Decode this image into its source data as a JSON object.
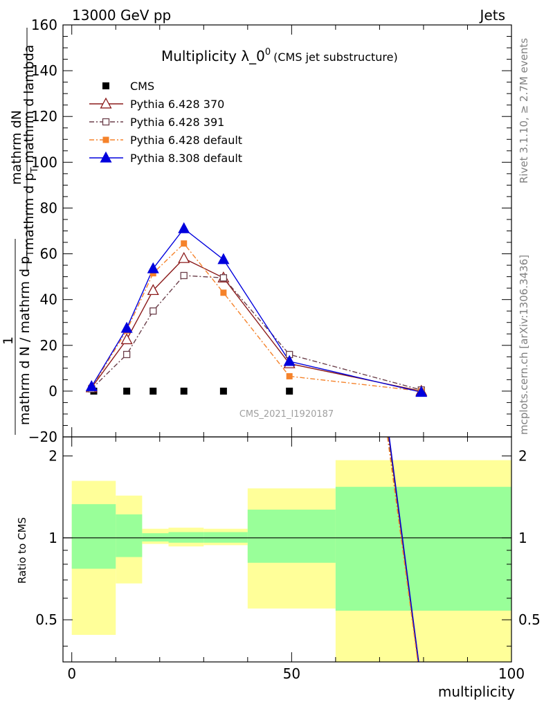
{
  "header": {
    "left": "13000 GeV pp",
    "right": "Jets"
  },
  "side_labels": {
    "rivet": "Rivet 3.1.10, ≥ 2.7M events",
    "mcplots": "mcplots.cern.ch [arXiv:1306.3436]"
  },
  "chart_data": [
    {
      "type": "line",
      "title_main": "Multiplicity λ_0",
      "title_sup": "0",
      "title_sub": "(CMS jet substructure)",
      "ylabel_numerator": "mathrm dN",
      "ylabel_num_1": "1",
      "ylabel_line1": "mathrm d N / mathrm d p",
      "ylabel_line1_sub": "T",
      "ylabel_line2": "mathrm d p",
      "ylabel_line2_sub": "T",
      "ylabel_line2_rest": " mathrm d lambda",
      "ylim": [
        -20,
        160
      ],
      "xlim": [
        -2,
        100
      ],
      "yticks": [
        -20,
        0,
        20,
        40,
        60,
        80,
        100,
        120,
        140,
        160
      ],
      "xticks": [
        0,
        50,
        100
      ],
      "watermark": "CMS_2021_I1920187",
      "legend_position": "top-left",
      "series": [
        {
          "name": "CMS",
          "color": "#000000",
          "marker": "square-filled",
          "dash": "none",
          "x": [
            5,
            12.5,
            18.5,
            25.5,
            34.5,
            49.5
          ],
          "y": [
            0,
            0,
            0,
            0,
            0,
            0
          ]
        },
        {
          "name": "Pythia 6.428 370",
          "color": "#8b1a1a",
          "marker": "triangle-open",
          "dash": "solid",
          "x": [
            4.5,
            12.5,
            18.5,
            25.5,
            34.5,
            49.5,
            79.5
          ],
          "y": [
            1.5,
            22.5,
            44,
            58,
            49.5,
            12,
            0
          ]
        },
        {
          "name": "Pythia 6.428 391",
          "color": "#6b3f4a",
          "marker": "square-open",
          "dash": "dashdot",
          "x": [
            4.5,
            12.5,
            18.5,
            25.5,
            34.5,
            49.5,
            79.5
          ],
          "y": [
            1,
            16,
            35,
            50.5,
            49.5,
            16,
            0.5
          ]
        },
        {
          "name": "Pythia 6.428 default",
          "color": "#f5822a",
          "marker": "square-filled",
          "dash": "dashdot",
          "x": [
            4.5,
            12.5,
            18.5,
            25.5,
            34.5,
            49.5,
            79.5
          ],
          "y": [
            1.5,
            26.5,
            51.5,
            64.5,
            43,
            6.5,
            0
          ]
        },
        {
          "name": "Pythia 8.308 default",
          "color": "#0000dd",
          "marker": "triangle-filled",
          "dash": "solid",
          "x": [
            4.5,
            12.5,
            18.5,
            25.5,
            34.5,
            49.5,
            79.5
          ],
          "y": [
            2,
            27.5,
            53.5,
            71,
            57.5,
            13,
            -0.5
          ]
        }
      ]
    },
    {
      "type": "area",
      "ylabel": "Ratio to CMS",
      "xlabel": "multiplicity",
      "ylim": [
        0.35,
        2.35
      ],
      "yscale": "log",
      "xlim": [
        -2,
        100
      ],
      "yticks": [
        0.5,
        1,
        2
      ],
      "reference_line": 1,
      "bands": [
        {
          "x0": 0,
          "x1": 10,
          "inner": [
            0.77,
            1.33
          ],
          "outer": [
            0.44,
            1.62
          ]
        },
        {
          "x0": 10,
          "x1": 16,
          "inner": [
            0.85,
            1.22
          ],
          "outer": [
            0.68,
            1.43
          ]
        },
        {
          "x0": 16,
          "x1": 22,
          "inner": [
            0.97,
            1.04
          ],
          "outer": [
            0.95,
            1.08
          ]
        },
        {
          "x0": 22,
          "x1": 30,
          "inner": [
            0.96,
            1.05
          ],
          "outer": [
            0.93,
            1.09
          ]
        },
        {
          "x0": 30,
          "x1": 40,
          "inner": [
            0.96,
            1.05
          ],
          "outer": [
            0.94,
            1.08
          ]
        },
        {
          "x0": 40,
          "x1": 60,
          "inner": [
            0.81,
            1.27
          ],
          "outer": [
            0.55,
            1.52
          ]
        },
        {
          "x0": 60,
          "x1": 100,
          "inner": [
            0.54,
            1.54
          ],
          "outer": [
            0.35,
            1.93
          ]
        }
      ],
      "ratio_series": [
        {
          "name": "Pythia 6.428 370",
          "color": "#8b1a1a",
          "dash": "solid",
          "x": [
            72.1,
            78.8
          ],
          "y": [
            2.35,
            0.35
          ]
        },
        {
          "name": "Pythia 6.428 391",
          "color": "#6b3f4a",
          "dash": "dashdot",
          "x": [
            72.0,
            78.8
          ],
          "y": [
            2.35,
            0.35
          ]
        },
        {
          "name": "Pythia 6.428 default",
          "color": "#f5822a",
          "dash": "dashdot",
          "x": [
            71.8,
            78.7
          ],
          "y": [
            2.35,
            0.35
          ]
        },
        {
          "name": "Pythia 8.308 default",
          "color": "#0000dd",
          "dash": "solid",
          "x": [
            72.2,
            78.9
          ],
          "y": [
            2.35,
            0.35
          ]
        }
      ]
    }
  ],
  "colors": {
    "band_outer": "#ffff99",
    "band_inner": "#99ff99",
    "watermark": "#a0a0a0"
  }
}
